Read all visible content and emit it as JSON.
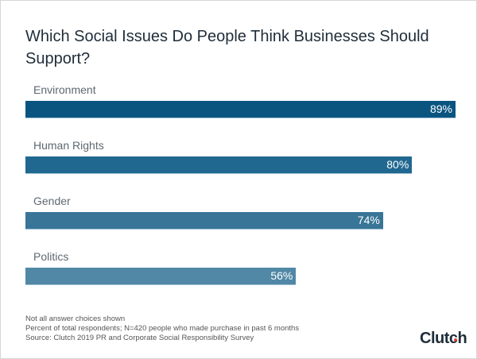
{
  "chart_data": {
    "type": "bar",
    "orientation": "horizontal",
    "title": "Which Social Issues Do People Think Businesses Should Support?",
    "categories": [
      "Environment",
      "Human Rights",
      "Gender",
      "Politics"
    ],
    "values": [
      89,
      80,
      74,
      56
    ],
    "data_labels": [
      "89%",
      "80%",
      "74%",
      "56%"
    ],
    "bar_colors": [
      "#0a5580",
      "#206890",
      "#387596",
      "#5088a6"
    ],
    "xlim": [
      0,
      89
    ],
    "grid": false,
    "legend": "none"
  },
  "notes": [
    "Not all answer choices shown",
    "Percent of total respondents; N=420 people who made purchase in past 6 months",
    "Source: Clutch 2019 PR and Corporate Social Responsibility Survey"
  ],
  "logo": "Clutch"
}
